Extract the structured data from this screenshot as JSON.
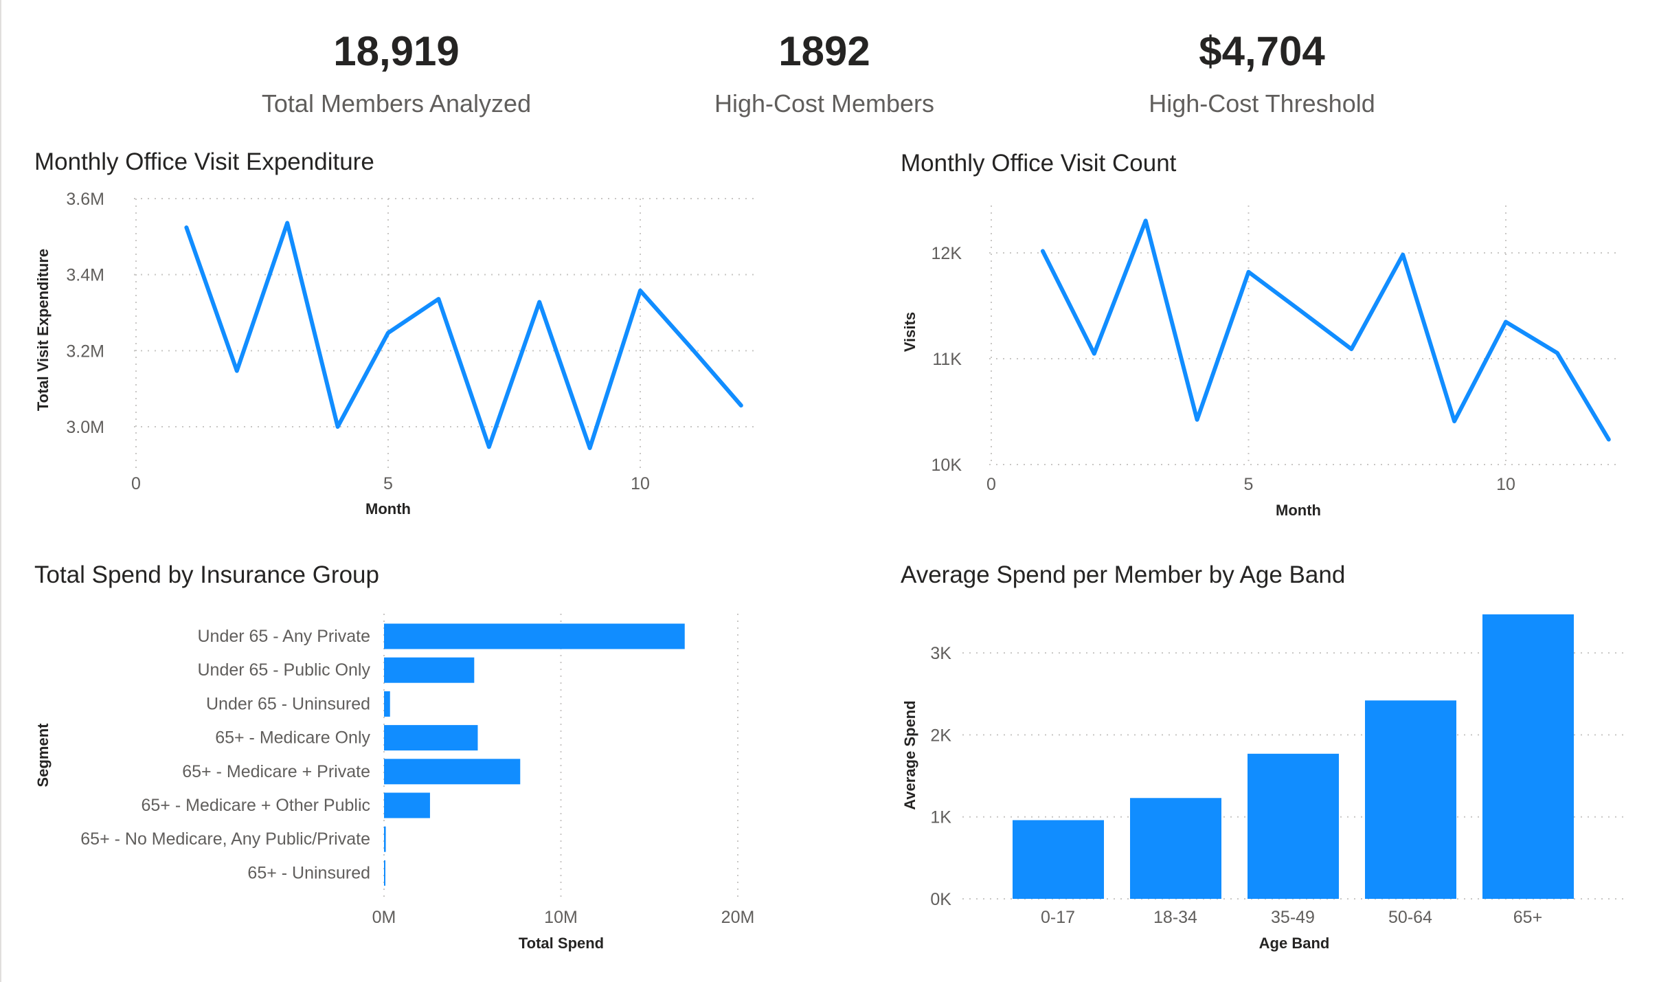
{
  "kpis": [
    {
      "value": "18,919",
      "label": "Total Members Analyzed"
    },
    {
      "value": "1892",
      "label": "High-Cost Members"
    },
    {
      "value": "$4,704",
      "label": "High-Cost Threshold"
    }
  ],
  "colors": {
    "series": "#118DFF",
    "text": "#252423",
    "muted": "#605E5C"
  },
  "chart_data": [
    {
      "type": "line",
      "title": "Monthly Office Visit Expenditure",
      "xlabel": "Month",
      "ylabel": "Total Visit Expenditure",
      "x": [
        1,
        2,
        3,
        4,
        5,
        6,
        7,
        8,
        9,
        10,
        11,
        12
      ],
      "values": [
        3524000,
        3147000,
        3536000,
        3000000,
        3247000,
        3336000,
        2947000,
        3328000,
        2944000,
        3358000,
        3209000,
        3056000
      ],
      "xticks": [
        "0",
        "5",
        "10"
      ],
      "yticks": [
        "3.0M",
        "3.2M",
        "3.4M",
        "3.6M"
      ],
      "xlim": [
        0,
        12.2
      ],
      "ylim": [
        2880000,
        3600000
      ],
      "grid": true
    },
    {
      "type": "line",
      "title": "Monthly Office Visit Count",
      "xlabel": "Month",
      "ylabel": "Visits",
      "x": [
        1,
        2,
        3,
        4,
        5,
        6,
        7,
        8,
        9,
        10,
        11,
        12
      ],
      "values": [
        12017,
        11048,
        12304,
        10424,
        11820,
        11457,
        11091,
        11983,
        10409,
        11348,
        11054,
        10237
      ],
      "xticks": [
        "0",
        "5",
        "10"
      ],
      "yticks": [
        "10K",
        "11K",
        "12K"
      ],
      "xlim": [
        0,
        12.4
      ],
      "ylim": [
        10000,
        12700
      ],
      "grid": true
    },
    {
      "type": "bar",
      "orientation": "horizontal",
      "title": "Total Spend by Insurance Group",
      "xlabel": "Total Spend",
      "ylabel": "Segment",
      "categories": [
        "Under 65 - Any Private",
        "Under 65 - Public Only",
        "Under 65 - Uninsured",
        "65+ - Medicare Only",
        "65+ - Medicare + Private",
        "65+ - Medicare + Other Public",
        "65+ - No Medicare, Any Public/Private",
        "65+ - Uninsured"
      ],
      "values": [
        17000000,
        5100000,
        340000,
        5300000,
        7700000,
        2600000,
        100000,
        40000
      ],
      "xticks": [
        "0M",
        "10M",
        "20M"
      ],
      "xlim": [
        0,
        20000000
      ],
      "grid": true
    },
    {
      "type": "bar",
      "title": "Average Spend per Member by Age Band",
      "xlabel": "Age Band",
      "ylabel": "Average Spend",
      "categories": [
        "0-17",
        "18-34",
        "35-49",
        "50-64",
        "65+"
      ],
      "values": [
        960,
        1230,
        1770,
        2420,
        3470
      ],
      "yticks": [
        "0K",
        "1K",
        "2K",
        "3K"
      ],
      "ylim": [
        0,
        3500
      ],
      "grid": true
    }
  ]
}
